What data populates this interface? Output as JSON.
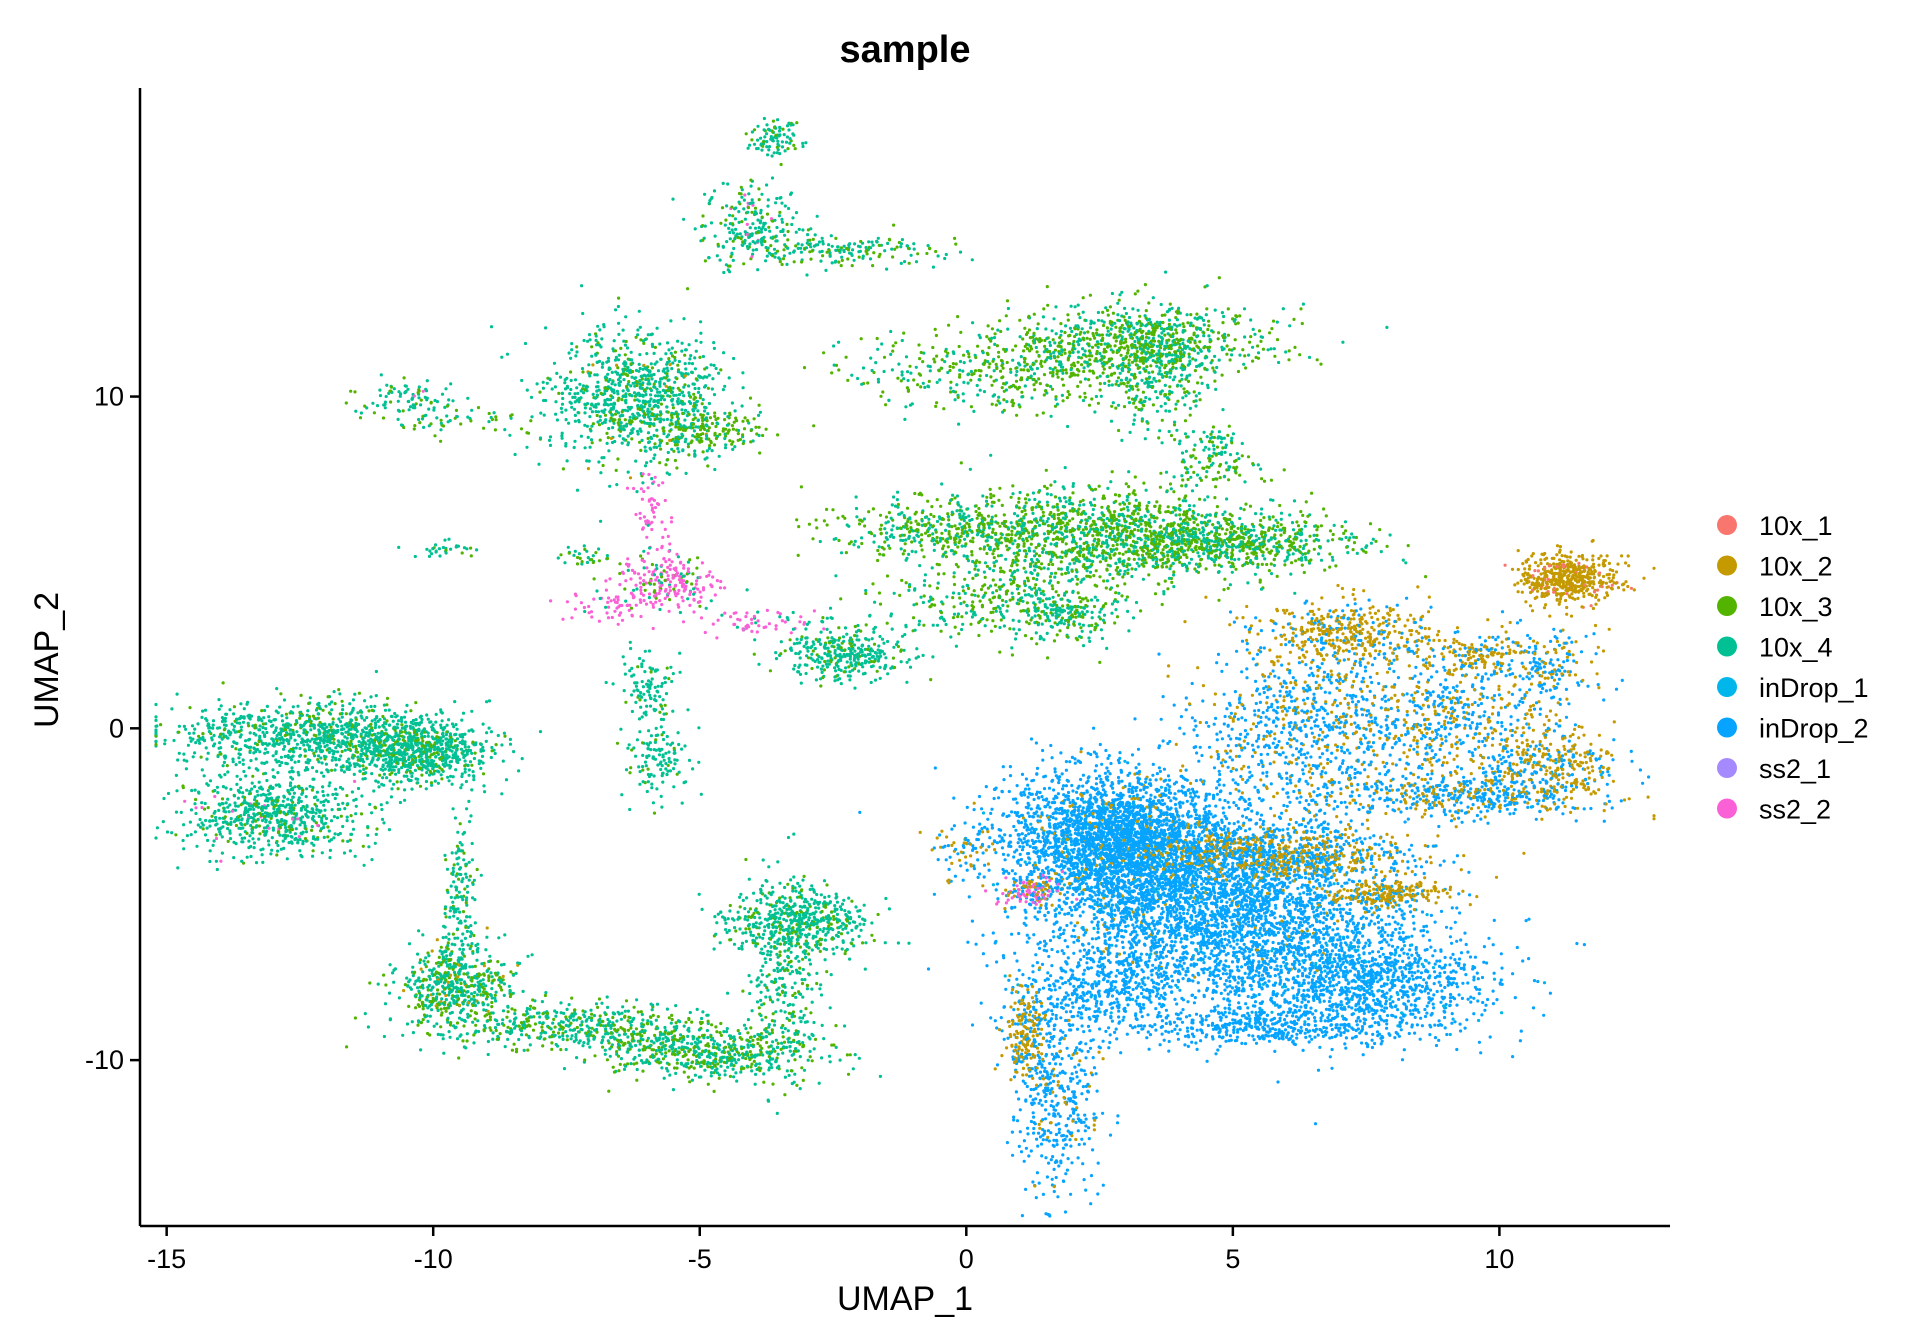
{
  "chart_data": {
    "type": "scatter",
    "title": "sample",
    "xlabel": "UMAP_1",
    "ylabel": "UMAP_2",
    "xlim": [
      -15.5,
      13.2
    ],
    "ylim": [
      -15,
      19.3
    ],
    "xticks": [
      -15,
      -10,
      -5,
      0,
      5,
      10
    ],
    "yticks": [
      -10,
      0,
      10
    ],
    "xtick_labels": [
      "-15",
      "-10",
      "-5",
      "0",
      "5",
      "10"
    ],
    "ytick_labels": [
      "-10",
      "0",
      "10"
    ],
    "grid": false,
    "legend_position": "right",
    "series": [
      {
        "name": "10x_1",
        "color": "#F8766D"
      },
      {
        "name": "10x_2",
        "color": "#C49A00"
      },
      {
        "name": "10x_3",
        "color": "#53B400"
      },
      {
        "name": "10x_4",
        "color": "#00C094"
      },
      {
        "name": "inDrop_1",
        "color": "#00B6EB"
      },
      {
        "name": "inDrop_2",
        "color": "#06A4FF"
      },
      {
        "name": "ss2_1",
        "color": "#A58AFF"
      },
      {
        "name": "ss2_2",
        "color": "#FB61D7"
      }
    ],
    "clusters": [
      {
        "center": [
          -3.6,
          17.8
        ],
        "spread": [
          0.25,
          0.3
        ],
        "n": 90,
        "mix": {
          "10x_4": 0.8,
          "10x_3": 0.2
        }
      },
      {
        "center": [
          -4.0,
          15.2
        ],
        "spread": [
          0.45,
          0.6
        ],
        "n": 220,
        "mix": {
          "10x_4": 0.75,
          "10x_3": 0.2,
          "ss2_2": 0.05
        }
      },
      {
        "center": [
          -2.4,
          14.4
        ],
        "spread": [
          0.9,
          0.25
        ],
        "n": 180,
        "mix": {
          "10x_4": 0.7,
          "10x_3": 0.3
        }
      },
      {
        "center": [
          -10.5,
          10.0
        ],
        "spread": [
          0.5,
          0.3
        ],
        "n": 90,
        "mix": {
          "10x_4": 0.7,
          "10x_3": 0.25,
          "ss2_2": 0.05
        }
      },
      {
        "center": [
          -9.6,
          9.2
        ],
        "spread": [
          0.7,
          0.2
        ],
        "n": 50,
        "mix": {
          "10x_4": 0.6,
          "10x_3": 0.4
        }
      },
      {
        "center": [
          -6.2,
          10.0
        ],
        "spread": [
          0.8,
          1.0
        ],
        "n": 900,
        "mix": {
          "10x_4": 0.8,
          "10x_3": 0.18,
          "10x_2": 0.02
        }
      },
      {
        "center": [
          -5.0,
          9.0
        ],
        "spread": [
          0.6,
          0.35
        ],
        "n": 200,
        "mix": {
          "10x_3": 0.6,
          "10x_4": 0.4
        }
      },
      {
        "center": [
          -9.8,
          5.4
        ],
        "spread": [
          0.3,
          0.12
        ],
        "n": 30,
        "mix": {
          "10x_4": 0.7,
          "10x_3": 0.3
        }
      },
      {
        "center": [
          -7.2,
          5.2
        ],
        "spread": [
          0.3,
          0.15
        ],
        "n": 30,
        "mix": {
          "10x_4": 0.8,
          "10x_3": 0.2
        }
      },
      {
        "center": [
          -5.6,
          4.4
        ],
        "spread": [
          0.45,
          0.4
        ],
        "n": 220,
        "mix": {
          "ss2_2": 0.7,
          "10x_3": 0.15,
          "10x_4": 0.15
        }
      },
      {
        "center": [
          -5.9,
          6.4
        ],
        "spread": [
          0.15,
          0.7
        ],
        "n": 60,
        "mix": {
          "ss2_2": 0.9,
          "10x_4": 0.1
        }
      },
      {
        "center": [
          -6.6,
          3.7
        ],
        "spread": [
          0.5,
          0.25
        ],
        "n": 60,
        "mix": {
          "ss2_2": 0.85,
          "10x_4": 0.15
        }
      },
      {
        "center": [
          -4.0,
          3.2
        ],
        "spread": [
          0.6,
          0.2
        ],
        "n": 60,
        "mix": {
          "ss2_2": 0.8,
          "10x_4": 0.2
        }
      },
      {
        "center": [
          -2.3,
          2.3
        ],
        "spread": [
          0.6,
          0.4
        ],
        "n": 350,
        "mix": {
          "10x_4": 0.85,
          "10x_3": 0.15
        }
      },
      {
        "center": [
          -6.0,
          1.2
        ],
        "spread": [
          0.25,
          0.5
        ],
        "n": 100,
        "mix": {
          "10x_4": 0.9,
          "10x_3": 0.1
        }
      },
      {
        "center": [
          -5.8,
          -0.9
        ],
        "spread": [
          0.3,
          0.6
        ],
        "n": 130,
        "mix": {
          "10x_4": 0.9,
          "10x_3": 0.1
        }
      },
      {
        "center": [
          0.8,
          10.8
        ],
        "spread": [
          1.5,
          0.6
        ],
        "n": 450,
        "mix": {
          "10x_3": 0.55,
          "10x_4": 0.45
        }
      },
      {
        "center": [
          3.3,
          11.6
        ],
        "spread": [
          1.2,
          0.6
        ],
        "n": 700,
        "mix": {
          "10x_3": 0.55,
          "10x_4": 0.45
        }
      },
      {
        "center": [
          3.6,
          10.8
        ],
        "spread": [
          0.5,
          1.0
        ],
        "n": 300,
        "mix": {
          "10x_4": 0.6,
          "10x_3": 0.4
        }
      },
      {
        "center": [
          4.6,
          8.6
        ],
        "spread": [
          0.3,
          0.3
        ],
        "n": 60,
        "mix": {
          "10x_4": 0.6,
          "10x_3": 0.4
        }
      },
      {
        "center": [
          4.8,
          7.8
        ],
        "spread": [
          0.5,
          0.2
        ],
        "n": 60,
        "mix": {
          "10x_3": 0.6,
          "10x_4": 0.4
        }
      },
      {
        "center": [
          -0.5,
          6.0
        ],
        "spread": [
          1.1,
          0.4
        ],
        "n": 350,
        "mix": {
          "10x_3": 0.6,
          "10x_4": 0.4
        }
      },
      {
        "center": [
          2.2,
          5.8
        ],
        "spread": [
          1.4,
          0.8
        ],
        "n": 1100,
        "mix": {
          "10x_3": 0.55,
          "10x_4": 0.45
        }
      },
      {
        "center": [
          4.8,
          5.6
        ],
        "spread": [
          1.2,
          0.45
        ],
        "n": 800,
        "mix": {
          "10x_3": 0.5,
          "10x_4": 0.5
        }
      },
      {
        "center": [
          0.2,
          3.8
        ],
        "spread": [
          0.9,
          0.6
        ],
        "n": 250,
        "mix": {
          "10x_3": 0.5,
          "10x_4": 0.5
        }
      },
      {
        "center": [
          1.9,
          3.4
        ],
        "spread": [
          0.5,
          0.4
        ],
        "n": 200,
        "mix": {
          "10x_4": 0.6,
          "10x_3": 0.4
        }
      },
      {
        "center": [
          -12.2,
          -0.2
        ],
        "spread": [
          1.3,
          0.5
        ],
        "n": 900,
        "mix": {
          "10x_4": 0.85,
          "10x_3": 0.15
        }
      },
      {
        "center": [
          -10.3,
          -0.7
        ],
        "spread": [
          0.7,
          0.5
        ],
        "n": 700,
        "mix": {
          "10x_4": 0.8,
          "10x_3": 0.2
        }
      },
      {
        "center": [
          -13.0,
          -2.6
        ],
        "spread": [
          0.8,
          0.6
        ],
        "n": 700,
        "mix": {
          "10x_4": 0.85,
          "10x_3": 0.12,
          "ss2_2": 0.03
        }
      },
      {
        "center": [
          -9.5,
          -5.5
        ],
        "spread": [
          0.15,
          1.3
        ],
        "n": 180,
        "mix": {
          "10x_4": 0.85,
          "10x_3": 0.15
        }
      },
      {
        "center": [
          -9.6,
          -7.8
        ],
        "spread": [
          0.6,
          0.6
        ],
        "n": 500,
        "mix": {
          "10x_4": 0.65,
          "10x_3": 0.3,
          "10x_2": 0.05
        }
      },
      {
        "center": [
          -7.3,
          -9.0
        ],
        "spread": [
          1.4,
          0.35
        ],
        "n": 500,
        "mix": {
          "10x_4": 0.6,
          "10x_3": 0.4
        }
      },
      {
        "center": [
          -4.8,
          -9.8
        ],
        "spread": [
          1.0,
          0.4
        ],
        "n": 550,
        "mix": {
          "10x_4": 0.6,
          "10x_3": 0.4
        }
      },
      {
        "center": [
          -3.4,
          -7.4
        ],
        "spread": [
          0.35,
          1.5
        ],
        "n": 300,
        "mix": {
          "10x_4": 0.8,
          "10x_3": 0.2
        }
      },
      {
        "center": [
          -3.2,
          -5.8
        ],
        "spread": [
          0.7,
          0.5
        ],
        "n": 500,
        "mix": {
          "10x_4": 0.85,
          "10x_3": 0.15
        }
      },
      {
        "center": [
          2.8,
          -3.3
        ],
        "spread": [
          1.0,
          1.0
        ],
        "n": 2600,
        "mix": {
          "inDrop_2": 0.93,
          "10x_2": 0.05,
          "inDrop_1": 0.02
        }
      },
      {
        "center": [
          4.6,
          -5.3
        ],
        "spread": [
          1.6,
          1.3
        ],
        "n": 3200,
        "mix": {
          "inDrop_2": 0.93,
          "10x_2": 0.03,
          "inDrop_1": 0.04
        }
      },
      {
        "center": [
          7.3,
          -7.6
        ],
        "spread": [
          1.3,
          0.9
        ],
        "n": 1400,
        "mix": {
          "inDrop_2": 0.95,
          "inDrop_1": 0.05
        }
      },
      {
        "center": [
          2.6,
          -8.0
        ],
        "spread": [
          0.9,
          0.8
        ],
        "n": 500,
        "mix": {
          "inDrop_2": 0.97,
          "inDrop_1": 0.03
        }
      },
      {
        "center": [
          5.5,
          -9.0
        ],
        "spread": [
          1.0,
          0.25
        ],
        "n": 300,
        "mix": {
          "inDrop_2": 1.0
        }
      },
      {
        "center": [
          1.7,
          -11.3
        ],
        "spread": [
          0.4,
          1.4
        ],
        "n": 400,
        "mix": {
          "inDrop_2": 0.9,
          "10x_2": 0.1
        }
      },
      {
        "center": [
          1.1,
          -9.2
        ],
        "spread": [
          0.2,
          0.8
        ],
        "n": 200,
        "mix": {
          "10x_2": 0.7,
          "inDrop_2": 0.3
        }
      },
      {
        "center": [
          1.2,
          -4.9
        ],
        "spread": [
          0.3,
          0.2
        ],
        "n": 120,
        "mix": {
          "ss2_2": 0.45,
          "10x_2": 0.3,
          "inDrop_2": 0.25
        }
      },
      {
        "center": [
          0.0,
          -3.8
        ],
        "spread": [
          0.4,
          0.4
        ],
        "n": 70,
        "mix": {
          "inDrop_2": 0.6,
          "10x_2": 0.4
        }
      },
      {
        "center": [
          5.8,
          -3.8
        ],
        "spread": [
          1.3,
          0.4
        ],
        "n": 700,
        "mix": {
          "10x_2": 0.55,
          "inDrop_2": 0.45
        }
      },
      {
        "center": [
          7.9,
          -5.0
        ],
        "spread": [
          0.6,
          0.2
        ],
        "n": 200,
        "mix": {
          "10x_2": 0.85,
          "inDrop_2": 0.15
        }
      },
      {
        "center": [
          6.2,
          0.0
        ],
        "spread": [
          1.0,
          1.4
        ],
        "n": 800,
        "mix": {
          "inDrop_2": 0.75,
          "10x_2": 0.25
        }
      },
      {
        "center": [
          7.2,
          2.9
        ],
        "spread": [
          0.8,
          0.5
        ],
        "n": 400,
        "mix": {
          "10x_2": 0.75,
          "inDrop_2": 0.25
        }
      },
      {
        "center": [
          8.9,
          0.3
        ],
        "spread": [
          0.9,
          0.9
        ],
        "n": 500,
        "mix": {
          "inDrop_2": 0.65,
          "10x_2": 0.35
        }
      },
      {
        "center": [
          9.4,
          -2.0
        ],
        "spread": [
          1.3,
          0.35
        ],
        "n": 500,
        "mix": {
          "inDrop_2": 0.7,
          "10x_2": 0.3
        }
      },
      {
        "center": [
          11.0,
          -1.0
        ],
        "spread": [
          0.6,
          0.5
        ],
        "n": 300,
        "mix": {
          "10x_2": 0.6,
          "inDrop_2": 0.35,
          "inDrop_1": 0.05
        }
      },
      {
        "center": [
          10.8,
          1.8
        ],
        "spread": [
          0.5,
          0.6
        ],
        "n": 200,
        "mix": {
          "inDrop_2": 0.55,
          "10x_2": 0.45
        }
      },
      {
        "center": [
          11.3,
          4.5
        ],
        "spread": [
          0.45,
          0.4
        ],
        "n": 500,
        "mix": {
          "10x_2": 0.9,
          "10x_1": 0.1
        }
      },
      {
        "center": [
          9.6,
          2.2
        ],
        "spread": [
          0.5,
          0.3
        ],
        "n": 150,
        "mix": {
          "10x_2": 0.7,
          "inDrop_2": 0.3
        }
      }
    ]
  }
}
